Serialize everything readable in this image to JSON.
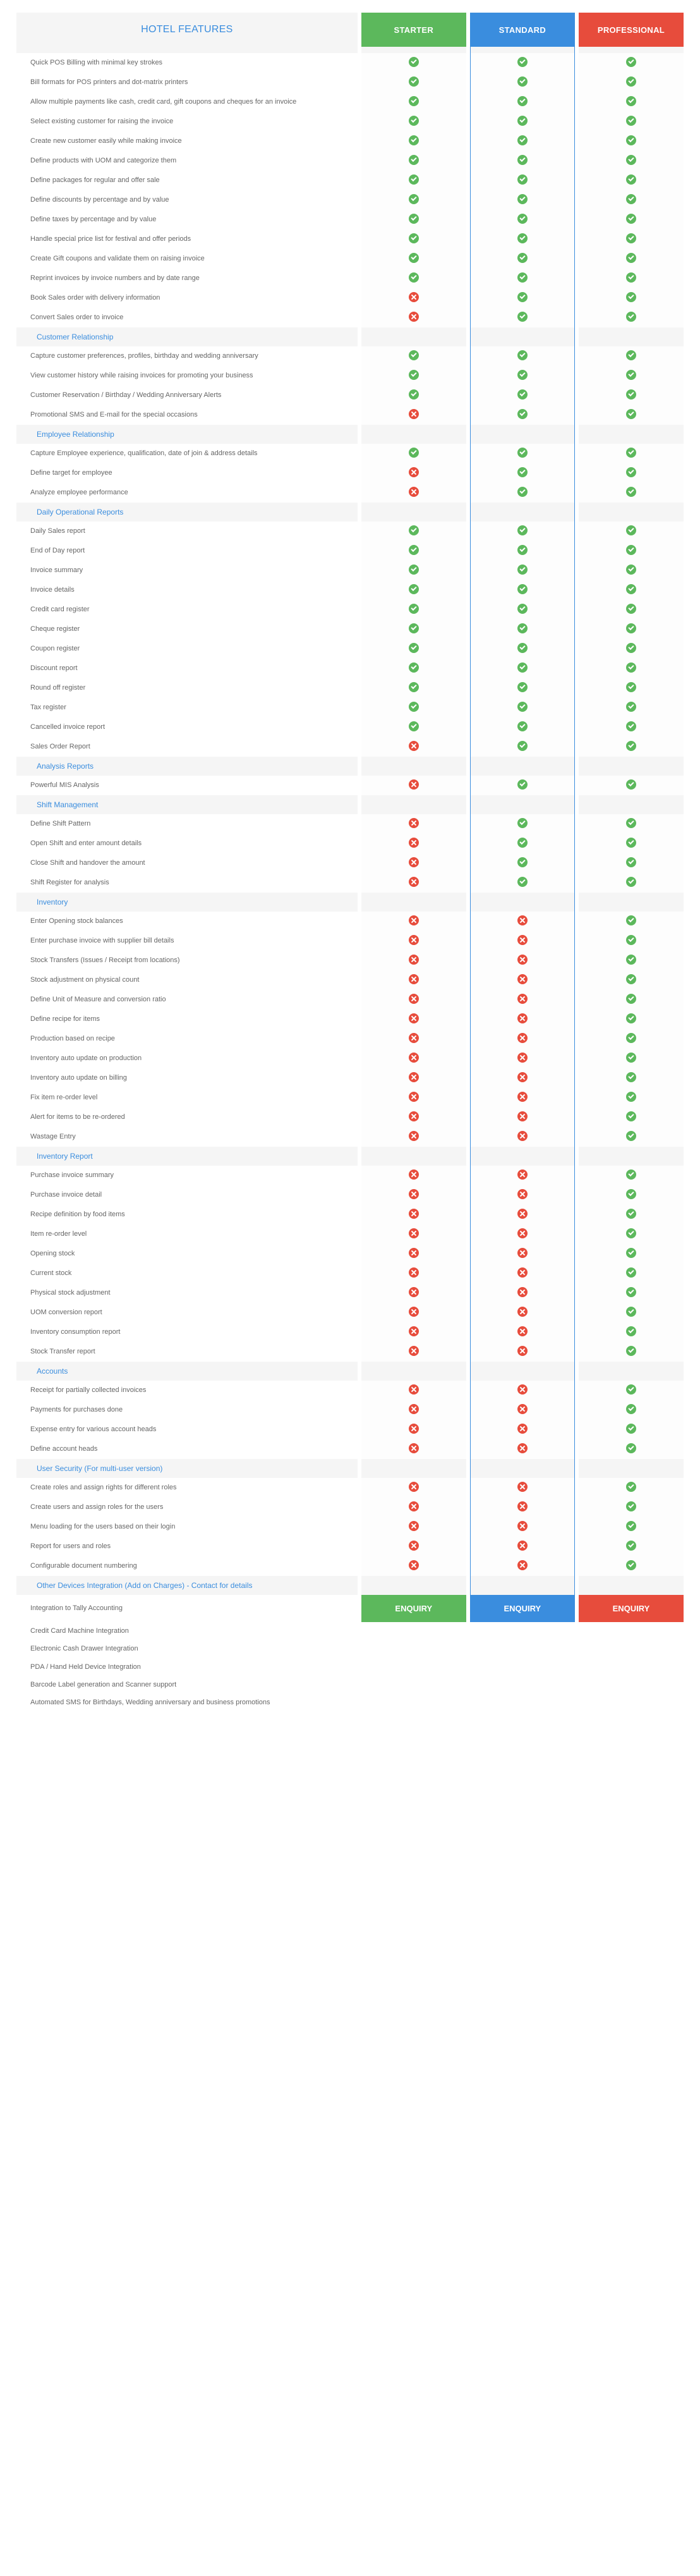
{
  "header": {
    "features_label": "HOTEL FEATURES",
    "plans": [
      "STARTER",
      "STANDARD",
      "PROFESSIONAL"
    ]
  },
  "enquiry_label": "ENQUIRY",
  "colors": {
    "starter": "#5cb85c",
    "standard": "#3a8dde",
    "professional": "#e74c3c",
    "section_bg": "#f5f5f5",
    "link": "#3a8dde"
  },
  "sections": [
    {
      "title": "",
      "rows": [
        {
          "label": "Quick POS Billing with minimal key strokes",
          "vals": [
            1,
            1,
            1
          ]
        },
        {
          "label": "Bill formats for POS printers and dot-matrix printers",
          "vals": [
            1,
            1,
            1
          ]
        },
        {
          "label": "Allow multiple payments like cash, credit card, gift coupons and cheques for an invoice",
          "vals": [
            1,
            1,
            1
          ]
        },
        {
          "label": "Select existing customer for raising the invoice",
          "vals": [
            1,
            1,
            1
          ]
        },
        {
          "label": "Create new customer easily while making invoice",
          "vals": [
            1,
            1,
            1
          ]
        },
        {
          "label": "Define products with UOM and categorize them",
          "vals": [
            1,
            1,
            1
          ]
        },
        {
          "label": "Define packages for regular and offer sale",
          "vals": [
            1,
            1,
            1
          ]
        },
        {
          "label": "Define discounts by percentage and by value",
          "vals": [
            1,
            1,
            1
          ]
        },
        {
          "label": "Define taxes by percentage and by value",
          "vals": [
            1,
            1,
            1
          ]
        },
        {
          "label": "Handle special price list for festival and offer periods",
          "vals": [
            1,
            1,
            1
          ]
        },
        {
          "label": "Create Gift coupons and validate them on raising invoice",
          "vals": [
            1,
            1,
            1
          ]
        },
        {
          "label": "Reprint invoices by invoice numbers and by date range",
          "vals": [
            1,
            1,
            1
          ]
        },
        {
          "label": "Book Sales order with delivery information",
          "vals": [
            0,
            1,
            1
          ]
        },
        {
          "label": "Convert Sales order to invoice",
          "vals": [
            0,
            1,
            1
          ]
        }
      ]
    },
    {
      "title": "Customer Relationship",
      "rows": [
        {
          "label": "Capture customer preferences, profiles, birthday and wedding anniversary",
          "vals": [
            1,
            1,
            1
          ]
        },
        {
          "label": "View customer history while raising invoices for promoting your business",
          "vals": [
            1,
            1,
            1
          ]
        },
        {
          "label": "Customer Reservation / Birthday / Wedding Anniversary Alerts",
          "vals": [
            1,
            1,
            1
          ]
        },
        {
          "label": "Promotional SMS and E-mail for the special occasions",
          "vals": [
            0,
            1,
            1
          ]
        }
      ]
    },
    {
      "title": "Employee Relationship",
      "rows": [
        {
          "label": "Capture Employee experience, qualification, date of join & address details",
          "vals": [
            1,
            1,
            1
          ]
        },
        {
          "label": "Define target for employee",
          "vals": [
            0,
            1,
            1
          ]
        },
        {
          "label": "Analyze employee performance",
          "vals": [
            0,
            1,
            1
          ]
        }
      ]
    },
    {
      "title": "Daily Operational Reports",
      "rows": [
        {
          "label": "Daily Sales report",
          "vals": [
            1,
            1,
            1
          ]
        },
        {
          "label": "End of Day report",
          "vals": [
            1,
            1,
            1
          ]
        },
        {
          "label": "Invoice summary",
          "vals": [
            1,
            1,
            1
          ]
        },
        {
          "label": "Invoice details",
          "vals": [
            1,
            1,
            1
          ]
        },
        {
          "label": "Credit card register",
          "vals": [
            1,
            1,
            1
          ]
        },
        {
          "label": "Cheque register",
          "vals": [
            1,
            1,
            1
          ]
        },
        {
          "label": "Coupon register",
          "vals": [
            1,
            1,
            1
          ]
        },
        {
          "label": "Discount report",
          "vals": [
            1,
            1,
            1
          ]
        },
        {
          "label": "Round off register",
          "vals": [
            1,
            1,
            1
          ]
        },
        {
          "label": "Tax register",
          "vals": [
            1,
            1,
            1
          ]
        },
        {
          "label": "Cancelled invoice report",
          "vals": [
            1,
            1,
            1
          ]
        },
        {
          "label": "Sales Order Report",
          "vals": [
            0,
            1,
            1
          ]
        }
      ]
    },
    {
      "title": "Analysis Reports",
      "rows": [
        {
          "label": "Powerful MIS Analysis",
          "vals": [
            0,
            1,
            1
          ]
        }
      ]
    },
    {
      "title": "Shift Management",
      "rows": [
        {
          "label": "Define Shift Pattern",
          "vals": [
            0,
            1,
            1
          ]
        },
        {
          "label": "Open Shift and enter amount details",
          "vals": [
            0,
            1,
            1
          ]
        },
        {
          "label": "Close Shift and handover the amount",
          "vals": [
            0,
            1,
            1
          ]
        },
        {
          "label": "Shift Register for analysis",
          "vals": [
            0,
            1,
            1
          ]
        }
      ]
    },
    {
      "title": "Inventory",
      "rows": [
        {
          "label": "Enter Opening stock balances",
          "vals": [
            0,
            0,
            1
          ]
        },
        {
          "label": "Enter purchase invoice with supplier bill details",
          "vals": [
            0,
            0,
            1
          ]
        },
        {
          "label": "Stock Transfers (Issues / Receipt from locations)",
          "vals": [
            0,
            0,
            1
          ]
        },
        {
          "label": "Stock adjustment on physical count",
          "vals": [
            0,
            0,
            1
          ]
        },
        {
          "label": "Define Unit of Measure and conversion ratio",
          "vals": [
            0,
            0,
            1
          ]
        },
        {
          "label": "Define recipe for items",
          "vals": [
            0,
            0,
            1
          ]
        },
        {
          "label": "Production based on recipe",
          "vals": [
            0,
            0,
            1
          ]
        },
        {
          "label": "Inventory auto update on production",
          "vals": [
            0,
            0,
            1
          ]
        },
        {
          "label": "Inventory auto update on billing",
          "vals": [
            0,
            0,
            1
          ]
        },
        {
          "label": "Fix item re-order level",
          "vals": [
            0,
            0,
            1
          ]
        },
        {
          "label": "Alert for items to be re-ordered",
          "vals": [
            0,
            0,
            1
          ]
        },
        {
          "label": "Wastage Entry",
          "vals": [
            0,
            0,
            1
          ]
        }
      ]
    },
    {
      "title": "Inventory Report",
      "rows": [
        {
          "label": "Purchase invoice summary",
          "vals": [
            0,
            0,
            1
          ]
        },
        {
          "label": "Purchase invoice detail",
          "vals": [
            0,
            0,
            1
          ]
        },
        {
          "label": "Recipe definition by food items",
          "vals": [
            0,
            0,
            1
          ]
        },
        {
          "label": "Item re-order level",
          "vals": [
            0,
            0,
            1
          ]
        },
        {
          "label": "Opening stock",
          "vals": [
            0,
            0,
            1
          ]
        },
        {
          "label": "Current stock",
          "vals": [
            0,
            0,
            1
          ]
        },
        {
          "label": "Physical stock adjustment",
          "vals": [
            0,
            0,
            1
          ]
        },
        {
          "label": "UOM conversion report",
          "vals": [
            0,
            0,
            1
          ]
        },
        {
          "label": "Inventory consumption report",
          "vals": [
            0,
            0,
            1
          ]
        },
        {
          "label": "Stock Transfer report",
          "vals": [
            0,
            0,
            1
          ]
        }
      ]
    },
    {
      "title": "Accounts",
      "rows": [
        {
          "label": "Receipt for partially collected invoices",
          "vals": [
            0,
            0,
            1
          ]
        },
        {
          "label": "Payments for purchases done",
          "vals": [
            0,
            0,
            1
          ]
        },
        {
          "label": "Expense entry for various account heads",
          "vals": [
            0,
            0,
            1
          ]
        },
        {
          "label": "Define account heads",
          "vals": [
            0,
            0,
            1
          ]
        }
      ]
    },
    {
      "title": "User Security (For multi-user version)",
      "rows": [
        {
          "label": "Create roles and assign rights for different roles",
          "vals": [
            0,
            0,
            1
          ]
        },
        {
          "label": "Create users and assign roles for the users",
          "vals": [
            0,
            0,
            1
          ]
        },
        {
          "label": "Menu loading for the users based on their login",
          "vals": [
            0,
            0,
            1
          ]
        },
        {
          "label": "Report for users and roles",
          "vals": [
            0,
            0,
            1
          ]
        },
        {
          "label": "Configurable document numbering",
          "vals": [
            0,
            0,
            1
          ]
        }
      ]
    },
    {
      "title": "Other Devices Integration (Add on Charges) - Contact for details",
      "rows": [
        {
          "label": "Integration to Tally Accounting",
          "vals": null
        },
        {
          "label": "Credit Card Machine Integration",
          "vals": null
        },
        {
          "label": "Electronic Cash Drawer Integration",
          "vals": null
        },
        {
          "label": "PDA / Hand Held Device Integration",
          "vals": null
        },
        {
          "label": "Barcode Label generation and Scanner support",
          "vals": null
        },
        {
          "label": "Automated SMS for Birthdays, Wedding anniversary and business promotions",
          "vals": null
        }
      ]
    }
  ]
}
